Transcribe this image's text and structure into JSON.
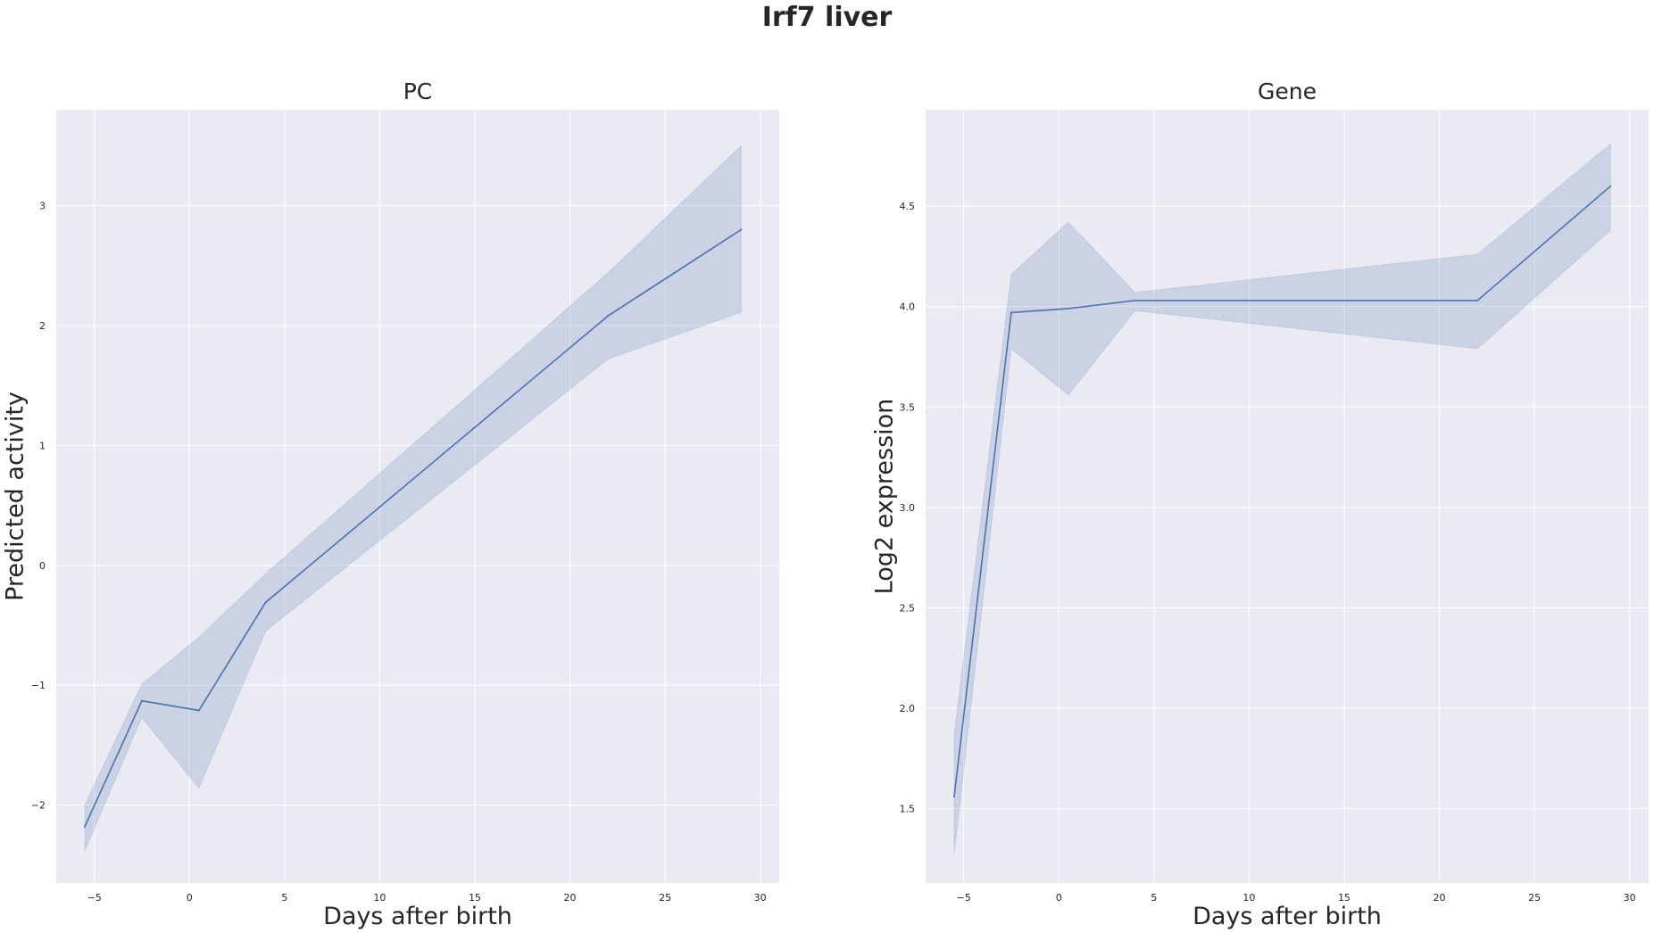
{
  "figure": {
    "title": "Irf7 liver"
  },
  "style": {
    "line_color": "#4c72b0",
    "band_color": "#4c72b0",
    "plot_bg": "#eaeaf2",
    "grid_color": "#ffffff"
  },
  "chart_data": [
    {
      "type": "line",
      "title": "PC",
      "xlabel": "Days after birth",
      "ylabel": "Predicted activity",
      "xlim": [
        -7,
        31
      ],
      "ylim": [
        -2.65,
        3.8
      ],
      "xticks": [
        -5,
        0,
        5,
        10,
        15,
        20,
        25,
        30
      ],
      "xtick_labels": [
        "−5",
        "0",
        "5",
        "10",
        "15",
        "20",
        "25",
        "30"
      ],
      "yticks": [
        -2,
        -1,
        0,
        1,
        2,
        3
      ],
      "ytick_labels": [
        "−2",
        "−1",
        "0",
        "1",
        "2",
        "3"
      ],
      "grid": true,
      "series": [
        {
          "x": [
            -5.5,
            -2.5,
            0.5,
            4,
            22,
            29
          ],
          "y": [
            -2.18,
            -1.13,
            -1.21,
            -0.31,
            2.08,
            2.8
          ],
          "ci_low": [
            -2.38,
            -1.27,
            -1.86,
            -0.55,
            1.72,
            2.11
          ],
          "ci_high": [
            -2.0,
            -0.99,
            -0.6,
            -0.07,
            2.44,
            3.5
          ]
        }
      ]
    },
    {
      "type": "line",
      "title": "Gene",
      "xlabel": "Days after birth",
      "ylabel": "Log2 expression",
      "xlim": [
        -7,
        31
      ],
      "ylim": [
        1.13,
        4.98
      ],
      "xticks": [
        -5,
        0,
        5,
        10,
        15,
        20,
        25,
        30
      ],
      "xtick_labels": [
        "−5",
        "0",
        "5",
        "10",
        "15",
        "20",
        "25",
        "30"
      ],
      "yticks": [
        1.5,
        2.0,
        2.5,
        3.0,
        3.5,
        4.0,
        4.5
      ],
      "ytick_labels": [
        "1.5",
        "2.0",
        "2.5",
        "3.0",
        "3.5",
        "4.0",
        "4.5"
      ],
      "grid": true,
      "series": [
        {
          "x": [
            -5.5,
            -2.5,
            0.5,
            4,
            22,
            29
          ],
          "y": [
            1.56,
            3.97,
            3.99,
            4.03,
            4.03,
            4.6
          ],
          "ci_low": [
            1.27,
            3.79,
            3.56,
            3.98,
            3.79,
            4.38
          ],
          "ci_high": [
            1.87,
            4.16,
            4.42,
            4.07,
            4.26,
            4.81
          ]
        }
      ]
    }
  ]
}
